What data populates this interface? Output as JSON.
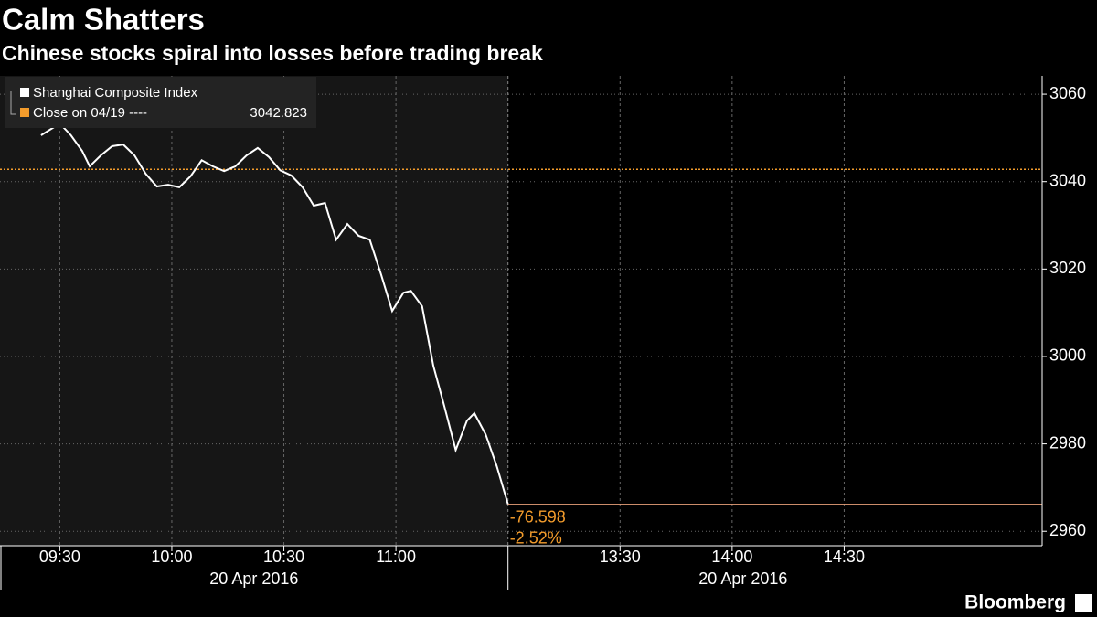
{
  "chart_data": {
    "type": "line",
    "title": "Calm Shatters",
    "subtitle": "Chinese stocks spiral into losses before trading break",
    "x": [
      "09:25",
      "09:30",
      "09:33",
      "09:36",
      "09:38",
      "09:41",
      "09:44",
      "09:47",
      "09:50",
      "09:53",
      "09:56",
      "09:59",
      "10:02",
      "10:05",
      "10:08",
      "10:11",
      "10:14",
      "10:17",
      "10:20",
      "10:23",
      "10:26",
      "10:29",
      "10:32",
      "10:35",
      "10:38",
      "10:41",
      "10:44",
      "10:47",
      "10:50",
      "10:53",
      "10:56",
      "10:59",
      "11:02",
      "11:04",
      "11:07",
      "11:10",
      "11:13",
      "11:16",
      "11:19",
      "11:21",
      "11:24",
      "11:27",
      "11:30"
    ],
    "series": [
      {
        "name": "Shanghai Composite Index",
        "color": "#ffffff",
        "values": [
          3050.6,
          3053.3,
          3050.6,
          3047.0,
          3043.5,
          3046.0,
          3048.1,
          3048.5,
          3046.0,
          3041.8,
          3038.9,
          3039.3,
          3038.7,
          3041.2,
          3044.9,
          3043.5,
          3042.4,
          3043.5,
          3046.0,
          3047.7,
          3045.6,
          3042.6,
          3041.4,
          3038.7,
          3034.5,
          3035.1,
          3026.7,
          3030.3,
          3027.6,
          3026.7,
          3018.8,
          3010.4,
          3014.6,
          3015.0,
          3011.5,
          2997.9,
          2988.5,
          2978.6,
          2985.3,
          2987.0,
          2982.2,
          2974.9,
          2966.2
        ]
      }
    ],
    "reference": {
      "name": "Close on 04/19 ----",
      "value": 3042.823,
      "color": "#f39c2c"
    },
    "annotations": [
      "-76.598",
      "-2.52%"
    ],
    "xlim": [
      "09:14",
      "15:23"
    ],
    "xbreak": [
      "11:30",
      "13:00"
    ],
    "xticks": [
      "09:30",
      "10:00",
      "10:30",
      "11:00",
      "13:30",
      "14:00",
      "14:30"
    ],
    "dates": [
      "20 Apr 2016",
      "20 Apr 2016"
    ],
    "ylim": [
      2956.7,
      3064.2
    ],
    "yticks": [
      2960,
      2980,
      3000,
      3020,
      3040,
      3060
    ],
    "grid": true,
    "source": "Bloomberg"
  }
}
